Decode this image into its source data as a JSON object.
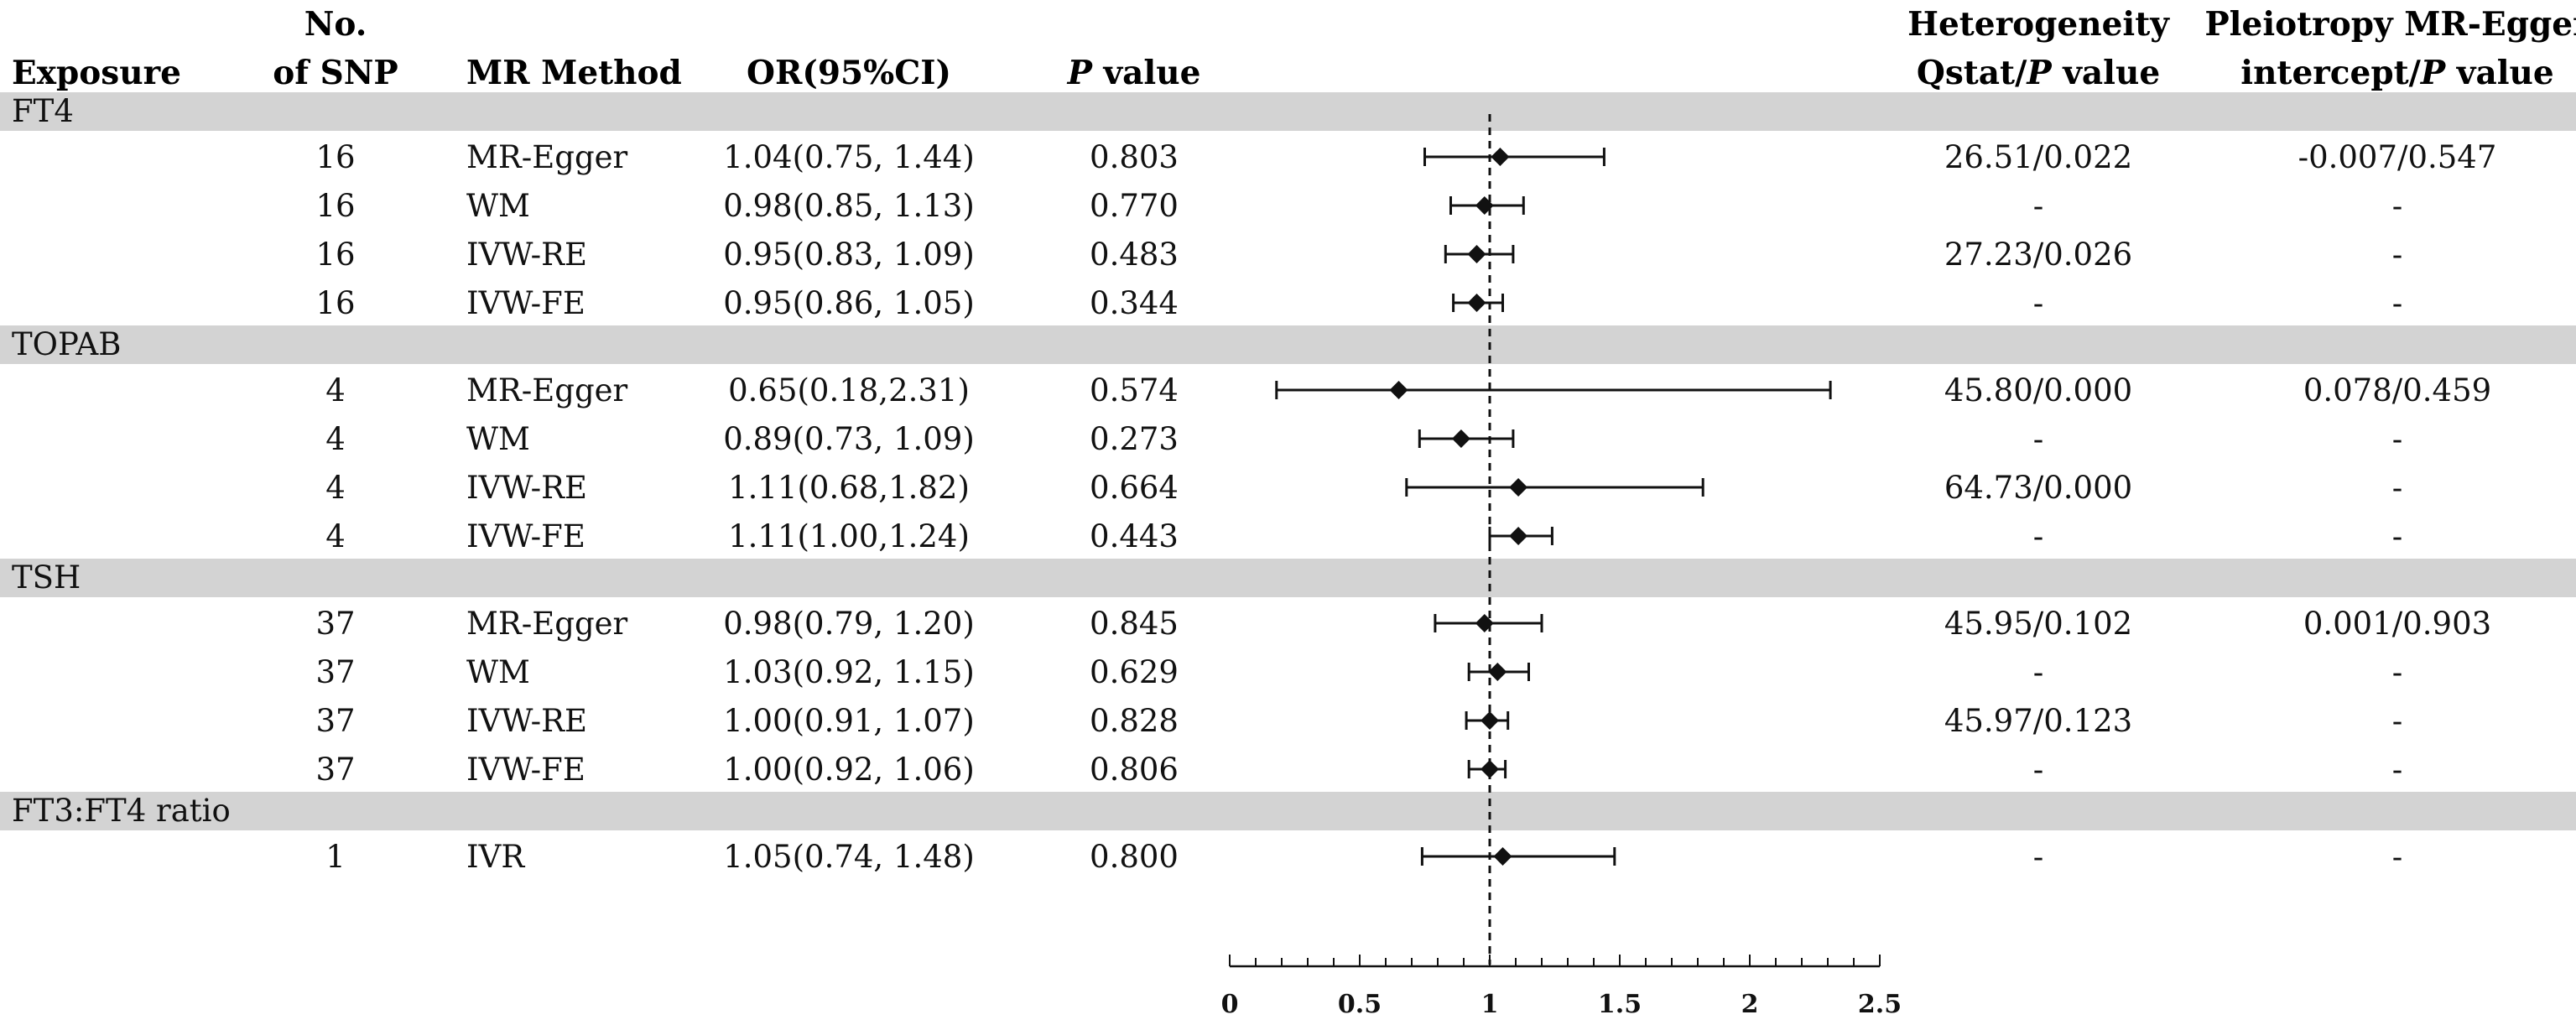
{
  "chart_data": {
    "type": "forest",
    "headers": {
      "exposure": "Exposure",
      "nsnp_line1": "No.",
      "nsnp_line2": "of SNP",
      "method": "MR Method",
      "or_ci": "OR(95%CI)",
      "p_italic": "P",
      "p_rest": " value",
      "het_line1": "Heterogeneity",
      "het_line2_a": "Qstat/",
      "het_line2_p": "P",
      "het_line2_b": " value",
      "pleio_line1": "Pleiotropy MR-Egger",
      "pleio_line2_a": "intercept/",
      "pleio_line2_p": "P",
      "pleio_line2_b": " value"
    },
    "x_axis": {
      "range": [
        0,
        2.5
      ],
      "ticks": [
        0,
        0.5,
        1,
        1.5,
        2,
        2.5
      ],
      "tick_labels": [
        "0",
        "0.5",
        "1",
        "1.5",
        "2",
        "2.5"
      ],
      "minor_step": 0.1,
      "reference_line": 1
    },
    "groups": [
      {
        "name": "FT4",
        "rows": [
          {
            "nsnp": "16",
            "method": "MR-Egger",
            "or_text": "1.04(0.75, 1.44)",
            "p": "0.803",
            "het": "26.51/0.022",
            "pleio": "-0.007/0.547",
            "or": 1.04,
            "lo": 0.75,
            "hi": 1.44
          },
          {
            "nsnp": "16",
            "method": "WM",
            "or_text": "0.98(0.85, 1.13)",
            "p": "0.770",
            "het": "-",
            "pleio": "-",
            "or": 0.98,
            "lo": 0.85,
            "hi": 1.13
          },
          {
            "nsnp": "16",
            "method": "IVW-RE",
            "or_text": "0.95(0.83, 1.09)",
            "p": "0.483",
            "het": "27.23/0.026",
            "pleio": "-",
            "or": 0.95,
            "lo": 0.83,
            "hi": 1.09
          },
          {
            "nsnp": "16",
            "method": "IVW-FE",
            "or_text": "0.95(0.86, 1.05)",
            "p": "0.344",
            "het": "-",
            "pleio": "-",
            "or": 0.95,
            "lo": 0.86,
            "hi": 1.05
          }
        ]
      },
      {
        "name": "TOPAB",
        "rows": [
          {
            "nsnp": "4",
            "method": "MR-Egger",
            "or_text": "0.65(0.18,2.31)",
            "p": "0.574",
            "het": "45.80/0.000",
            "pleio": "0.078/0.459",
            "or": 0.65,
            "lo": 0.18,
            "hi": 2.31
          },
          {
            "nsnp": "4",
            "method": "WM",
            "or_text": "0.89(0.73, 1.09)",
            "p": "0.273",
            "het": "-",
            "pleio": "-",
            "or": 0.89,
            "lo": 0.73,
            "hi": 1.09
          },
          {
            "nsnp": "4",
            "method": "IVW-RE",
            "or_text": "1.11(0.68,1.82)",
            "p": "0.664",
            "het": "64.73/0.000",
            "pleio": "-",
            "or": 1.11,
            "lo": 0.68,
            "hi": 1.82
          },
          {
            "nsnp": "4",
            "method": "IVW-FE",
            "or_text": "1.11(1.00,1.24)",
            "p": "0.443",
            "het": "-",
            "pleio": "-",
            "or": 1.11,
            "lo": 1.0,
            "hi": 1.24
          }
        ]
      },
      {
        "name": "TSH",
        "rows": [
          {
            "nsnp": "37",
            "method": "MR-Egger",
            "or_text": "0.98(0.79, 1.20)",
            "p": "0.845",
            "het": "45.95/0.102",
            "pleio": "0.001/0.903",
            "or": 0.98,
            "lo": 0.79,
            "hi": 1.2
          },
          {
            "nsnp": "37",
            "method": "WM",
            "or_text": "1.03(0.92, 1.15)",
            "p": "0.629",
            "het": "-",
            "pleio": "-",
            "or": 1.03,
            "lo": 0.92,
            "hi": 1.15
          },
          {
            "nsnp": "37",
            "method": "IVW-RE",
            "or_text": "1.00(0.91, 1.07)",
            "p": "0.828",
            "het": "45.97/0.123",
            "pleio": "-",
            "or": 1.0,
            "lo": 0.91,
            "hi": 1.07
          },
          {
            "nsnp": "37",
            "method": "IVW-FE",
            "or_text": "1.00(0.92, 1.06)",
            "p": "0.806",
            "het": "-",
            "pleio": "-",
            "or": 1.0,
            "lo": 0.92,
            "hi": 1.06
          }
        ]
      },
      {
        "name": "FT3:FT4 ratio",
        "rows": [
          {
            "nsnp": "1",
            "method": "IVR",
            "or_text": "1.05(0.74, 1.48)",
            "p": "0.800",
            "het": "-",
            "pleio": "-",
            "or": 1.05,
            "lo": 0.74,
            "hi": 1.48
          }
        ]
      }
    ],
    "colors": {
      "band": "#d3d3d3",
      "ink": "#111111"
    }
  }
}
